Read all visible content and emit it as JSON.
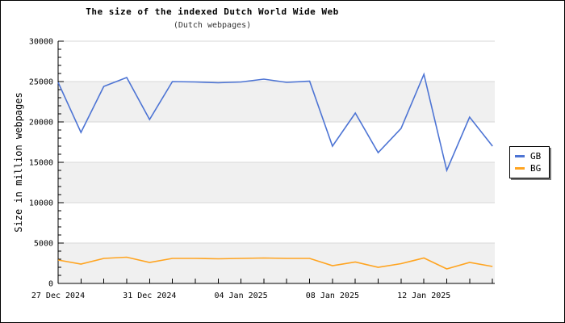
{
  "chart_data": {
    "type": "line",
    "title": "The size of the indexed Dutch World Wide Web",
    "subtitle": "(Dutch webpages)",
    "ylabel": "Size in million webpages",
    "xlabel": "",
    "ylim": [
      0,
      30000
    ],
    "x_range_days": [
      0,
      19.1
    ],
    "x_unit": "day",
    "x_days": [
      0,
      1,
      2,
      3,
      4,
      5,
      6,
      7,
      8,
      9,
      10,
      11,
      12,
      13,
      14,
      15,
      16,
      17,
      18,
      19
    ],
    "xticks": [
      {
        "day": 0,
        "label": "27 Dec 2024"
      },
      {
        "day": 4,
        "label": "31 Dec 2024"
      },
      {
        "day": 8,
        "label": "04 Jan 2025"
      },
      {
        "day": 12,
        "label": "08 Jan 2025"
      },
      {
        "day": 16,
        "label": "12 Jan 2025"
      }
    ],
    "yticks": [
      0,
      5000,
      10000,
      15000,
      20000,
      25000,
      30000
    ],
    "y_minor_step": 1000,
    "background_bands": [
      [
        0,
        5000
      ],
      [
        10000,
        15000
      ],
      [
        20000,
        25000
      ]
    ],
    "grid": true,
    "legend_position": "outside-right-middle",
    "series": [
      {
        "name": "GB",
        "color": "#4d74d4",
        "values": [
          24900,
          18700,
          24400,
          25500,
          20300,
          25000,
          24950,
          24850,
          24950,
          25300,
          24900,
          25050,
          17000,
          21100,
          16200,
          19200,
          25900,
          14000,
          20600,
          17000
        ]
      },
      {
        "name": "BG",
        "color": "#ffa420",
        "values": [
          2900,
          2400,
          3100,
          3250,
          2600,
          3100,
          3100,
          3050,
          3100,
          3150,
          3100,
          3100,
          2200,
          2650,
          2000,
          2450,
          3150,
          1800,
          2600,
          2100
        ]
      }
    ],
    "colors": {
      "band": "#f0f0f0",
      "grid": "#d7d7d7",
      "axis": "#000000",
      "background": "#ffffff"
    }
  }
}
